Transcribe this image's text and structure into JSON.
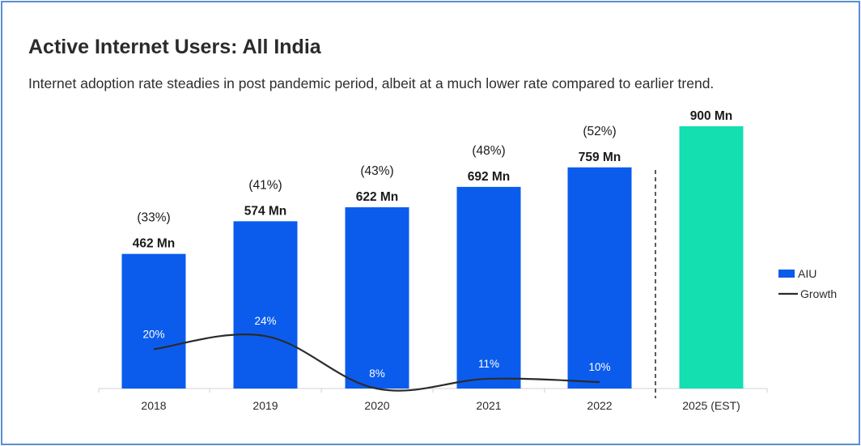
{
  "header": {
    "title": "Active Internet Users: All India",
    "subtitle": "Internet adoption rate steadies in post pandemic period, albeit at a much lower rate compared to earlier trend."
  },
  "colors": {
    "aiu_bar": "#0b5cec",
    "estimate_bar": "#14dfb0",
    "growth_line": "#2b2b2b",
    "frame_border": "#5b8fd0"
  },
  "chart_data": {
    "type": "bar",
    "title": "Active Internet Users: All India",
    "subtitle": "Internet adoption rate steadies in post pandemic period, albeit at a much lower rate compared to earlier trend.",
    "categories": [
      "2018",
      "2019",
      "2020",
      "2021",
      "2022",
      "2025 (EST)"
    ],
    "series": [
      {
        "name": "AIU",
        "type": "bar",
        "values": [
          462,
          574,
          622,
          692,
          759,
          900
        ],
        "labels": [
          "462 Mn",
          "574 Mn",
          "622 Mn",
          "692 Mn",
          "759 Mn",
          "900 Mn"
        ],
        "estimated": [
          false,
          false,
          false,
          false,
          false,
          true
        ]
      },
      {
        "name": "Growth",
        "type": "line",
        "values": [
          20,
          24,
          8,
          11,
          10,
          null
        ],
        "labels": [
          "20%",
          "24%",
          "8%",
          "11%",
          "10%",
          ""
        ]
      }
    ],
    "bracket_labels": [
      "(33%)",
      "(41%)",
      "(43%)",
      "(48%)",
      "(52%)",
      ""
    ],
    "legend": {
      "position": "right",
      "items": [
        {
          "label": "AIU",
          "marker": "square"
        },
        {
          "label": "Growth",
          "marker": "line"
        }
      ]
    },
    "separator_before": "2025 (EST)",
    "grid": false,
    "xlabel": "",
    "ylabel": ""
  }
}
